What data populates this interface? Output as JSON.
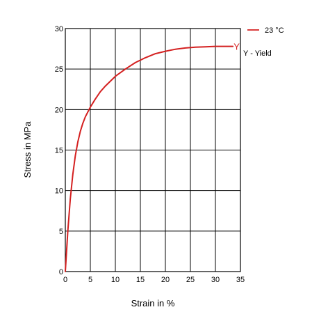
{
  "chart_data": {
    "type": "line",
    "xlabel": "Strain in %",
    "ylabel": "Stress in MPa",
    "xlim": [
      0,
      35
    ],
    "ylim": [
      0,
      30
    ],
    "x_ticks": [
      "0",
      "5",
      "10",
      "15",
      "20",
      "25",
      "30",
      "35"
    ],
    "y_ticks": [
      "0",
      "5",
      "10",
      "15",
      "20",
      "25",
      "30"
    ],
    "grid": true,
    "legend_position": "top-right",
    "series": [
      {
        "name": "23 °C",
        "color": "#d42020",
        "x": [
          0,
          0.5,
          1,
          1.5,
          2,
          2.5,
          3,
          3.5,
          4,
          4.5,
          5,
          6,
          7,
          8,
          9,
          10,
          12,
          14,
          16,
          18,
          20,
          22,
          24,
          26,
          28,
          30,
          32,
          33.5
        ],
        "y": [
          0,
          5,
          9,
          12,
          14.3,
          16,
          17.3,
          18.3,
          19.1,
          19.7,
          20.3,
          21.3,
          22.2,
          22.9,
          23.5,
          24.1,
          25,
          25.8,
          26.4,
          26.9,
          27.2,
          27.45,
          27.6,
          27.7,
          27.75,
          27.8,
          27.8,
          27.8
        ]
      }
    ],
    "yield_point": {
      "label": "Y",
      "x": 33.5,
      "y": 27.8
    },
    "legend_entries": [
      {
        "label": "23 °C",
        "kind": "line",
        "color": "#d42020"
      },
      {
        "label": "Y - Yield",
        "kind": "text"
      }
    ]
  }
}
